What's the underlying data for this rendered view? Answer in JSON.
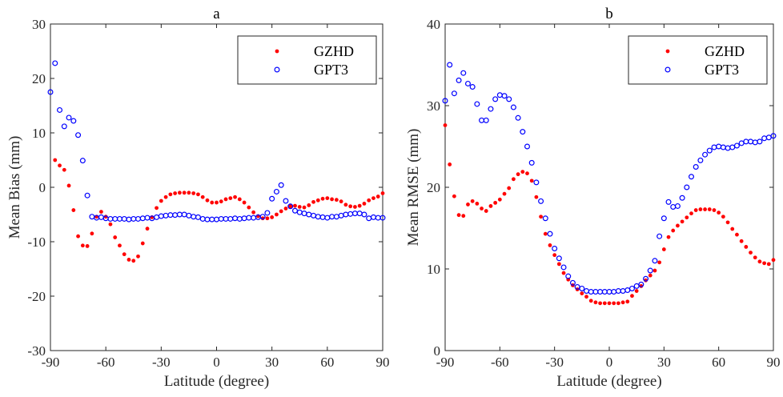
{
  "chart_data": [
    {
      "type": "scatter",
      "title": "a",
      "xlabel": "Latitude (degree)",
      "ylabel": "Mean Bias (mm)",
      "xlim": [
        -90,
        90
      ],
      "ylim": [
        -30,
        30
      ],
      "xticks": [
        -90,
        -60,
        -30,
        0,
        30,
        60,
        90
      ],
      "yticks": [
        -30,
        -20,
        -10,
        0,
        10,
        20,
        30
      ],
      "legend_position": "top-right",
      "series": [
        {
          "name": "GZHD",
          "marker": "filled-dot",
          "color": "#ff0000",
          "x": [
            -87.5,
            -85,
            -82.5,
            -80,
            -77.5,
            -75,
            -72.5,
            -70,
            -67.5,
            -65,
            -62.5,
            -60,
            -57.5,
            -55,
            -52.5,
            -50,
            -47.5,
            -45,
            -42.5,
            -40,
            -37.5,
            -35,
            -32.5,
            -30,
            -27.5,
            -25,
            -22.5,
            -20,
            -17.5,
            -15,
            -12.5,
            -10,
            -7.5,
            -5,
            -2.5,
            0,
            2.5,
            5,
            7.5,
            10,
            12.5,
            15,
            17.5,
            20,
            22.5,
            25,
            27.5,
            30,
            32.5,
            35,
            37.5,
            40,
            42.5,
            45,
            47.5,
            50,
            52.5,
            55,
            57.5,
            60,
            62.5,
            65,
            67.5,
            70,
            72.5,
            75,
            77.5,
            80,
            82.5,
            85,
            87.5,
            90
          ],
          "y": [
            5,
            4,
            3.2,
            0.3,
            -4.2,
            -9,
            -10.7,
            -10.8,
            -8.5,
            -5.4,
            -4.5,
            -5.4,
            -6.8,
            -9.2,
            -10.7,
            -12.3,
            -13.3,
            -13.5,
            -12.7,
            -10.3,
            -7.6,
            -5.5,
            -3.8,
            -2.5,
            -1.8,
            -1.3,
            -1.1,
            -1,
            -1,
            -1,
            -1.1,
            -1.3,
            -1.8,
            -2.4,
            -2.8,
            -2.8,
            -2.6,
            -2.2,
            -2,
            -1.8,
            -2.2,
            -2.8,
            -3.7,
            -4.6,
            -5.3,
            -5.7,
            -5.7,
            -5.5,
            -5,
            -4.4,
            -3.9,
            -3.5,
            -3.4,
            -3.6,
            -3.7,
            -3.3,
            -2.7,
            -2.4,
            -2.1,
            -2,
            -2.2,
            -2.3,
            -2.6,
            -3.2,
            -3.5,
            -3.6,
            -3.4,
            -3,
            -2.4,
            -2,
            -1.7,
            -1.1
          ]
        },
        {
          "name": "GPT3",
          "marker": "open-circle",
          "color": "#0000ff",
          "x": [
            -90,
            -87.5,
            -85,
            -82.5,
            -80,
            -77.5,
            -75,
            -72.5,
            -70,
            -67.5,
            -65,
            -62.5,
            -60,
            -57.5,
            -55,
            -52.5,
            -50,
            -47.5,
            -45,
            -42.5,
            -40,
            -37.5,
            -35,
            -32.5,
            -30,
            -27.5,
            -25,
            -22.5,
            -20,
            -17.5,
            -15,
            -12.5,
            -10,
            -7.5,
            -5,
            -2.5,
            0,
            2.5,
            5,
            7.5,
            10,
            12.5,
            15,
            17.5,
            20,
            22.5,
            25,
            27.5,
            30,
            32.5,
            35,
            37.5,
            40,
            42.5,
            45,
            47.5,
            50,
            52.5,
            55,
            57.5,
            60,
            62.5,
            65,
            67.5,
            70,
            72.5,
            75,
            77.5,
            80,
            82.5,
            85,
            87.5,
            90
          ],
          "y": [
            17.5,
            22.8,
            14.2,
            11.2,
            12.8,
            12.2,
            9.6,
            4.9,
            -1.5,
            -5.4,
            -5.6,
            -5.5,
            -5.7,
            -5.8,
            -5.8,
            -5.8,
            -5.8,
            -5.9,
            -5.8,
            -5.8,
            -5.7,
            -5.6,
            -5.7,
            -5.5,
            -5.3,
            -5.2,
            -5.1,
            -5.1,
            -5,
            -5,
            -5.2,
            -5.4,
            -5.5,
            -5.8,
            -5.9,
            -5.9,
            -5.9,
            -5.8,
            -5.8,
            -5.8,
            -5.7,
            -5.8,
            -5.7,
            -5.6,
            -5.6,
            -5.5,
            -5.4,
            -4.7,
            -2.1,
            -0.8,
            0.4,
            -2.5,
            -3.5,
            -4.3,
            -4.6,
            -4.8,
            -5,
            -5.2,
            -5.4,
            -5.5,
            -5.6,
            -5.4,
            -5.4,
            -5.2,
            -5,
            -4.9,
            -4.8,
            -4.8,
            -5,
            -5.7,
            -5.5,
            -5.6,
            -5.6
          ]
        }
      ]
    },
    {
      "type": "scatter",
      "title": "b",
      "xlabel": "Latitude (degree)",
      "ylabel": "Mean RMSE (mm)",
      "xlim": [
        -90,
        90
      ],
      "ylim": [
        0,
        40
      ],
      "xticks": [
        -90,
        -60,
        -30,
        0,
        30,
        60,
        90
      ],
      "yticks": [
        0,
        10,
        20,
        30,
        40
      ],
      "legend_position": "top-right",
      "series": [
        {
          "name": "GZHD",
          "marker": "filled-dot",
          "color": "#ff0000",
          "x": [
            -90,
            -87.5,
            -85,
            -82.5,
            -80,
            -77.5,
            -75,
            -72.5,
            -70,
            -67.5,
            -65,
            -62.5,
            -60,
            -57.5,
            -55,
            -52.5,
            -50,
            -47.5,
            -45,
            -42.5,
            -40,
            -37.5,
            -35,
            -32.5,
            -30,
            -27.5,
            -25,
            -22.5,
            -20,
            -17.5,
            -15,
            -12.5,
            -10,
            -7.5,
            -5,
            -2.5,
            0,
            2.5,
            5,
            7.5,
            10,
            12.5,
            15,
            17.5,
            20,
            22.5,
            25,
            27.5,
            30,
            32.5,
            35,
            37.5,
            40,
            42.5,
            45,
            47.5,
            50,
            52.5,
            55,
            57.5,
            60,
            62.5,
            65,
            67.5,
            70,
            72.5,
            75,
            77.5,
            80,
            82.5,
            85,
            87.5,
            90
          ],
          "y": [
            27.6,
            22.8,
            18.9,
            16.6,
            16.5,
            17.9,
            18.3,
            18,
            17.4,
            17.1,
            17.7,
            18.1,
            18.5,
            19.2,
            19.9,
            21,
            21.6,
            21.9,
            21.7,
            20.8,
            18.8,
            16.4,
            14.3,
            12.9,
            11.7,
            10.6,
            9.5,
            8.7,
            8,
            7.5,
            7,
            6.6,
            6.1,
            5.9,
            5.8,
            5.8,
            5.8,
            5.8,
            5.8,
            5.9,
            6,
            6.7,
            7.3,
            7.9,
            8.6,
            9.2,
            9.8,
            10.8,
            12.4,
            13.9,
            14.7,
            15.3,
            15.8,
            16.3,
            16.8,
            17.2,
            17.3,
            17.3,
            17.3,
            17.2,
            16.9,
            16.4,
            15.7,
            14.9,
            14.2,
            13.4,
            12.7,
            12,
            11.4,
            10.9,
            10.7,
            10.6,
            11.1
          ]
        },
        {
          "name": "GPT3",
          "marker": "open-circle",
          "color": "#0000ff",
          "x": [
            -90,
            -87.5,
            -85,
            -82.5,
            -80,
            -77.5,
            -75,
            -72.5,
            -70,
            -67.5,
            -65,
            -62.5,
            -60,
            -57.5,
            -55,
            -52.5,
            -50,
            -47.5,
            -45,
            -42.5,
            -40,
            -37.5,
            -35,
            -32.5,
            -30,
            -27.5,
            -25,
            -22.5,
            -20,
            -17.5,
            -15,
            -12.5,
            -10,
            -7.5,
            -5,
            -2.5,
            0,
            2.5,
            5,
            7.5,
            10,
            12.5,
            15,
            17.5,
            20,
            22.5,
            25,
            27.5,
            30,
            32.5,
            35,
            37.5,
            40,
            42.5,
            45,
            47.5,
            50,
            52.5,
            55,
            57.5,
            60,
            62.5,
            65,
            67.5,
            70,
            72.5,
            75,
            77.5,
            80,
            82.5,
            85,
            87.5,
            90
          ],
          "y": [
            30.6,
            35,
            31.5,
            33.1,
            34,
            32.7,
            32.3,
            30.2,
            28.2,
            28.2,
            29.6,
            30.8,
            31.3,
            31.2,
            30.8,
            29.8,
            28.5,
            26.8,
            25,
            23,
            20.6,
            18.3,
            16.2,
            14.3,
            12.5,
            11.3,
            10.2,
            9.1,
            8.3,
            7.8,
            7.6,
            7.3,
            7.2,
            7.2,
            7.2,
            7.2,
            7.2,
            7.2,
            7.3,
            7.3,
            7.4,
            7.6,
            7.9,
            8.1,
            8.8,
            9.8,
            11,
            14,
            16.2,
            18.2,
            17.6,
            17.7,
            18.7,
            20,
            21.3,
            22.5,
            23.3,
            24,
            24.5,
            24.9,
            25,
            24.9,
            24.8,
            24.9,
            25.1,
            25.4,
            25.6,
            25.6,
            25.5,
            25.6,
            26,
            26.1,
            26.3
          ]
        }
      ]
    }
  ]
}
